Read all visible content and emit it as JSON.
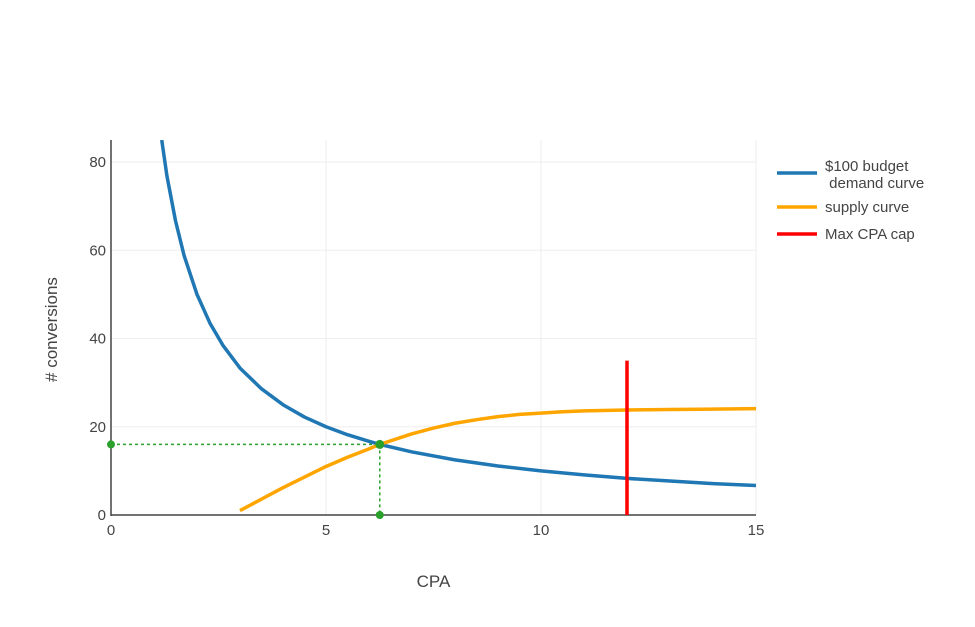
{
  "chart_data": {
    "type": "line",
    "xlabel": "CPA",
    "ylabel": "# conversions",
    "xlim": [
      0,
      15
    ],
    "ylim": [
      0,
      85
    ],
    "x_ticks": [
      0,
      5,
      10,
      15
    ],
    "y_ticks": [
      0,
      20,
      40,
      60,
      80
    ],
    "grid": true,
    "legend_position": "right",
    "series": [
      {
        "name": "$100 budget\n demand curve",
        "color": "#1f77b4",
        "x": [
          1.18,
          1.3,
          1.5,
          1.7,
          2.0,
          2.3,
          2.6,
          3.0,
          3.5,
          4.0,
          4.5,
          5.0,
          5.5,
          6.0,
          6.25,
          7.0,
          8.0,
          9.0,
          10.0,
          11.0,
          12.0,
          13.0,
          14.0,
          15.0
        ],
        "y": [
          85,
          76.9,
          66.7,
          58.8,
          50,
          43.5,
          38.5,
          33.3,
          28.6,
          25,
          22.2,
          20,
          18.2,
          16.7,
          16,
          14.3,
          12.5,
          11.1,
          10,
          9.1,
          8.3,
          7.7,
          7.1,
          6.7
        ]
      },
      {
        "name": "supply curve",
        "color": "#ffa500",
        "x": [
          3.0,
          3.5,
          4.0,
          4.5,
          5.0,
          5.5,
          6.0,
          6.25,
          6.5,
          7.0,
          7.5,
          8.0,
          8.5,
          9.0,
          9.5,
          10.0,
          10.5,
          11.0,
          12.0,
          13.0,
          14.0,
          15.0
        ],
        "y": [
          1.0,
          3.6,
          6.2,
          8.6,
          11.0,
          13.1,
          15.0,
          16.0,
          16.8,
          18.4,
          19.7,
          20.8,
          21.6,
          22.3,
          22.8,
          23.1,
          23.4,
          23.6,
          23.8,
          23.9,
          24.0,
          24.1
        ]
      },
      {
        "name": "Max CPA cap",
        "color": "#ff0000",
        "x": [
          12,
          12
        ],
        "y": [
          0,
          35
        ]
      }
    ],
    "equilibrium": {
      "x": 6.25,
      "y": 16,
      "color": "#2ca02c"
    }
  }
}
